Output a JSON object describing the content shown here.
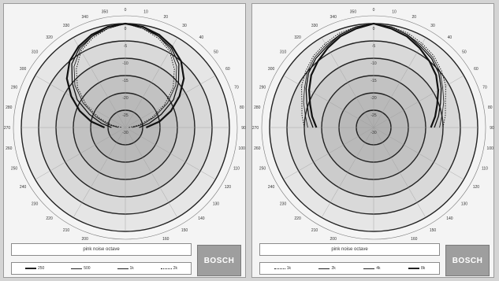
{
  "brand": "BOSCH",
  "chart_data": [
    {
      "type": "polar",
      "caption": "pink noise octave",
      "radial_ticks": [
        "0",
        "-5",
        "-10",
        "-15",
        "-20",
        "-25",
        "-30"
      ],
      "angle_step_deg": 10,
      "angle_labels": [
        "0",
        "10",
        "20",
        "30",
        "40",
        "50",
        "60",
        "70",
        "80",
        "90",
        "100",
        "110",
        "120",
        "130",
        "140",
        "150",
        "160",
        "170",
        "180",
        "190",
        "200",
        "210",
        "220",
        "230",
        "240",
        "250",
        "260",
        "270",
        "280",
        "290",
        "300",
        "310",
        "320",
        "330",
        "340",
        "350"
      ],
      "series": [
        {
          "name": "250",
          "style": "thick",
          "points": [
            [
              0,
              0
            ],
            [
              10,
              -0.5
            ],
            [
              20,
              -1.5
            ],
            [
              30,
              -3
            ],
            [
              40,
              -5
            ],
            [
              50,
              -8
            ],
            [
              60,
              -12
            ],
            [
              70,
              -16
            ],
            [
              80,
              -20
            ],
            [
              90,
              -24
            ]
          ]
        },
        {
          "name": "500",
          "style": "medium",
          "points": [
            [
              0,
              0
            ],
            [
              10,
              -0.5
            ],
            [
              20,
              -2
            ],
            [
              30,
              -3.5
            ],
            [
              40,
              -6
            ],
            [
              50,
              -10
            ],
            [
              60,
              -14
            ],
            [
              70,
              -19
            ],
            [
              80,
              -23
            ],
            [
              90,
              -26
            ]
          ]
        },
        {
          "name": "1k",
          "style": "thin",
          "points": [
            [
              0,
              0
            ],
            [
              10,
              -1
            ],
            [
              20,
              -2
            ],
            [
              30,
              -4
            ],
            [
              40,
              -7
            ],
            [
              50,
              -11
            ],
            [
              60,
              -16
            ],
            [
              70,
              -21
            ],
            [
              80,
              -25
            ],
            [
              90,
              -28
            ]
          ]
        },
        {
          "name": "2k",
          "style": "dotted",
          "points": [
            [
              0,
              0
            ],
            [
              10,
              -1
            ],
            [
              20,
              -2.5
            ],
            [
              30,
              -4.5
            ],
            [
              40,
              -8
            ],
            [
              50,
              -12
            ],
            [
              60,
              -17
            ],
            [
              70,
              -22
            ],
            [
              80,
              -26
            ],
            [
              90,
              -29
            ]
          ]
        }
      ]
    },
    {
      "type": "polar",
      "caption": "pink noise octave",
      "radial_ticks": [
        "0",
        "-5",
        "-10",
        "-15",
        "-20",
        "-25",
        "-30"
      ],
      "angle_step_deg": 10,
      "angle_labels": [
        "0",
        "10",
        "20",
        "30",
        "40",
        "50",
        "60",
        "70",
        "80",
        "90",
        "100",
        "110",
        "120",
        "130",
        "140",
        "150",
        "160",
        "170",
        "180",
        "190",
        "200",
        "210",
        "220",
        "230",
        "240",
        "250",
        "260",
        "270",
        "280",
        "290",
        "300",
        "310",
        "320",
        "330",
        "340",
        "350"
      ],
      "series": [
        {
          "name": "1k",
          "style": "dotted",
          "points": [
            [
              0,
              0
            ],
            [
              10,
              -0.5
            ],
            [
              20,
              -1
            ],
            [
              30,
              -2
            ],
            [
              40,
              -3
            ],
            [
              50,
              -4.5
            ],
            [
              60,
              -6
            ],
            [
              70,
              -8
            ],
            [
              80,
              -9
            ],
            [
              90,
              -10
            ]
          ]
        },
        {
          "name": "2k",
          "style": "thin",
          "points": [
            [
              0,
              0
            ],
            [
              10,
              -0.5
            ],
            [
              20,
              -1.5
            ],
            [
              30,
              -2.5
            ],
            [
              40,
              -3.5
            ],
            [
              50,
              -5
            ],
            [
              60,
              -7
            ],
            [
              70,
              -8.5
            ],
            [
              80,
              -10
            ],
            [
              90,
              -11
            ]
          ]
        },
        {
          "name": "4k",
          "style": "medium",
          "points": [
            [
              0,
              0
            ],
            [
              10,
              -0.5
            ],
            [
              20,
              -1.5
            ],
            [
              30,
              -3
            ],
            [
              40,
              -4
            ],
            [
              50,
              -5.5
            ],
            [
              60,
              -7.5
            ],
            [
              70,
              -9.5
            ],
            [
              80,
              -11
            ],
            [
              90,
              -12.5
            ]
          ]
        },
        {
          "name": "8k",
          "style": "thick",
          "points": [
            [
              0,
              0
            ],
            [
              10,
              -1
            ],
            [
              20,
              -2
            ],
            [
              30,
              -3.5
            ],
            [
              40,
              -5
            ],
            [
              50,
              -6.5
            ],
            [
              60,
              -8.5
            ],
            [
              70,
              -10.5
            ],
            [
              80,
              -12
            ],
            [
              90,
              -13.5
            ]
          ]
        }
      ]
    }
  ]
}
